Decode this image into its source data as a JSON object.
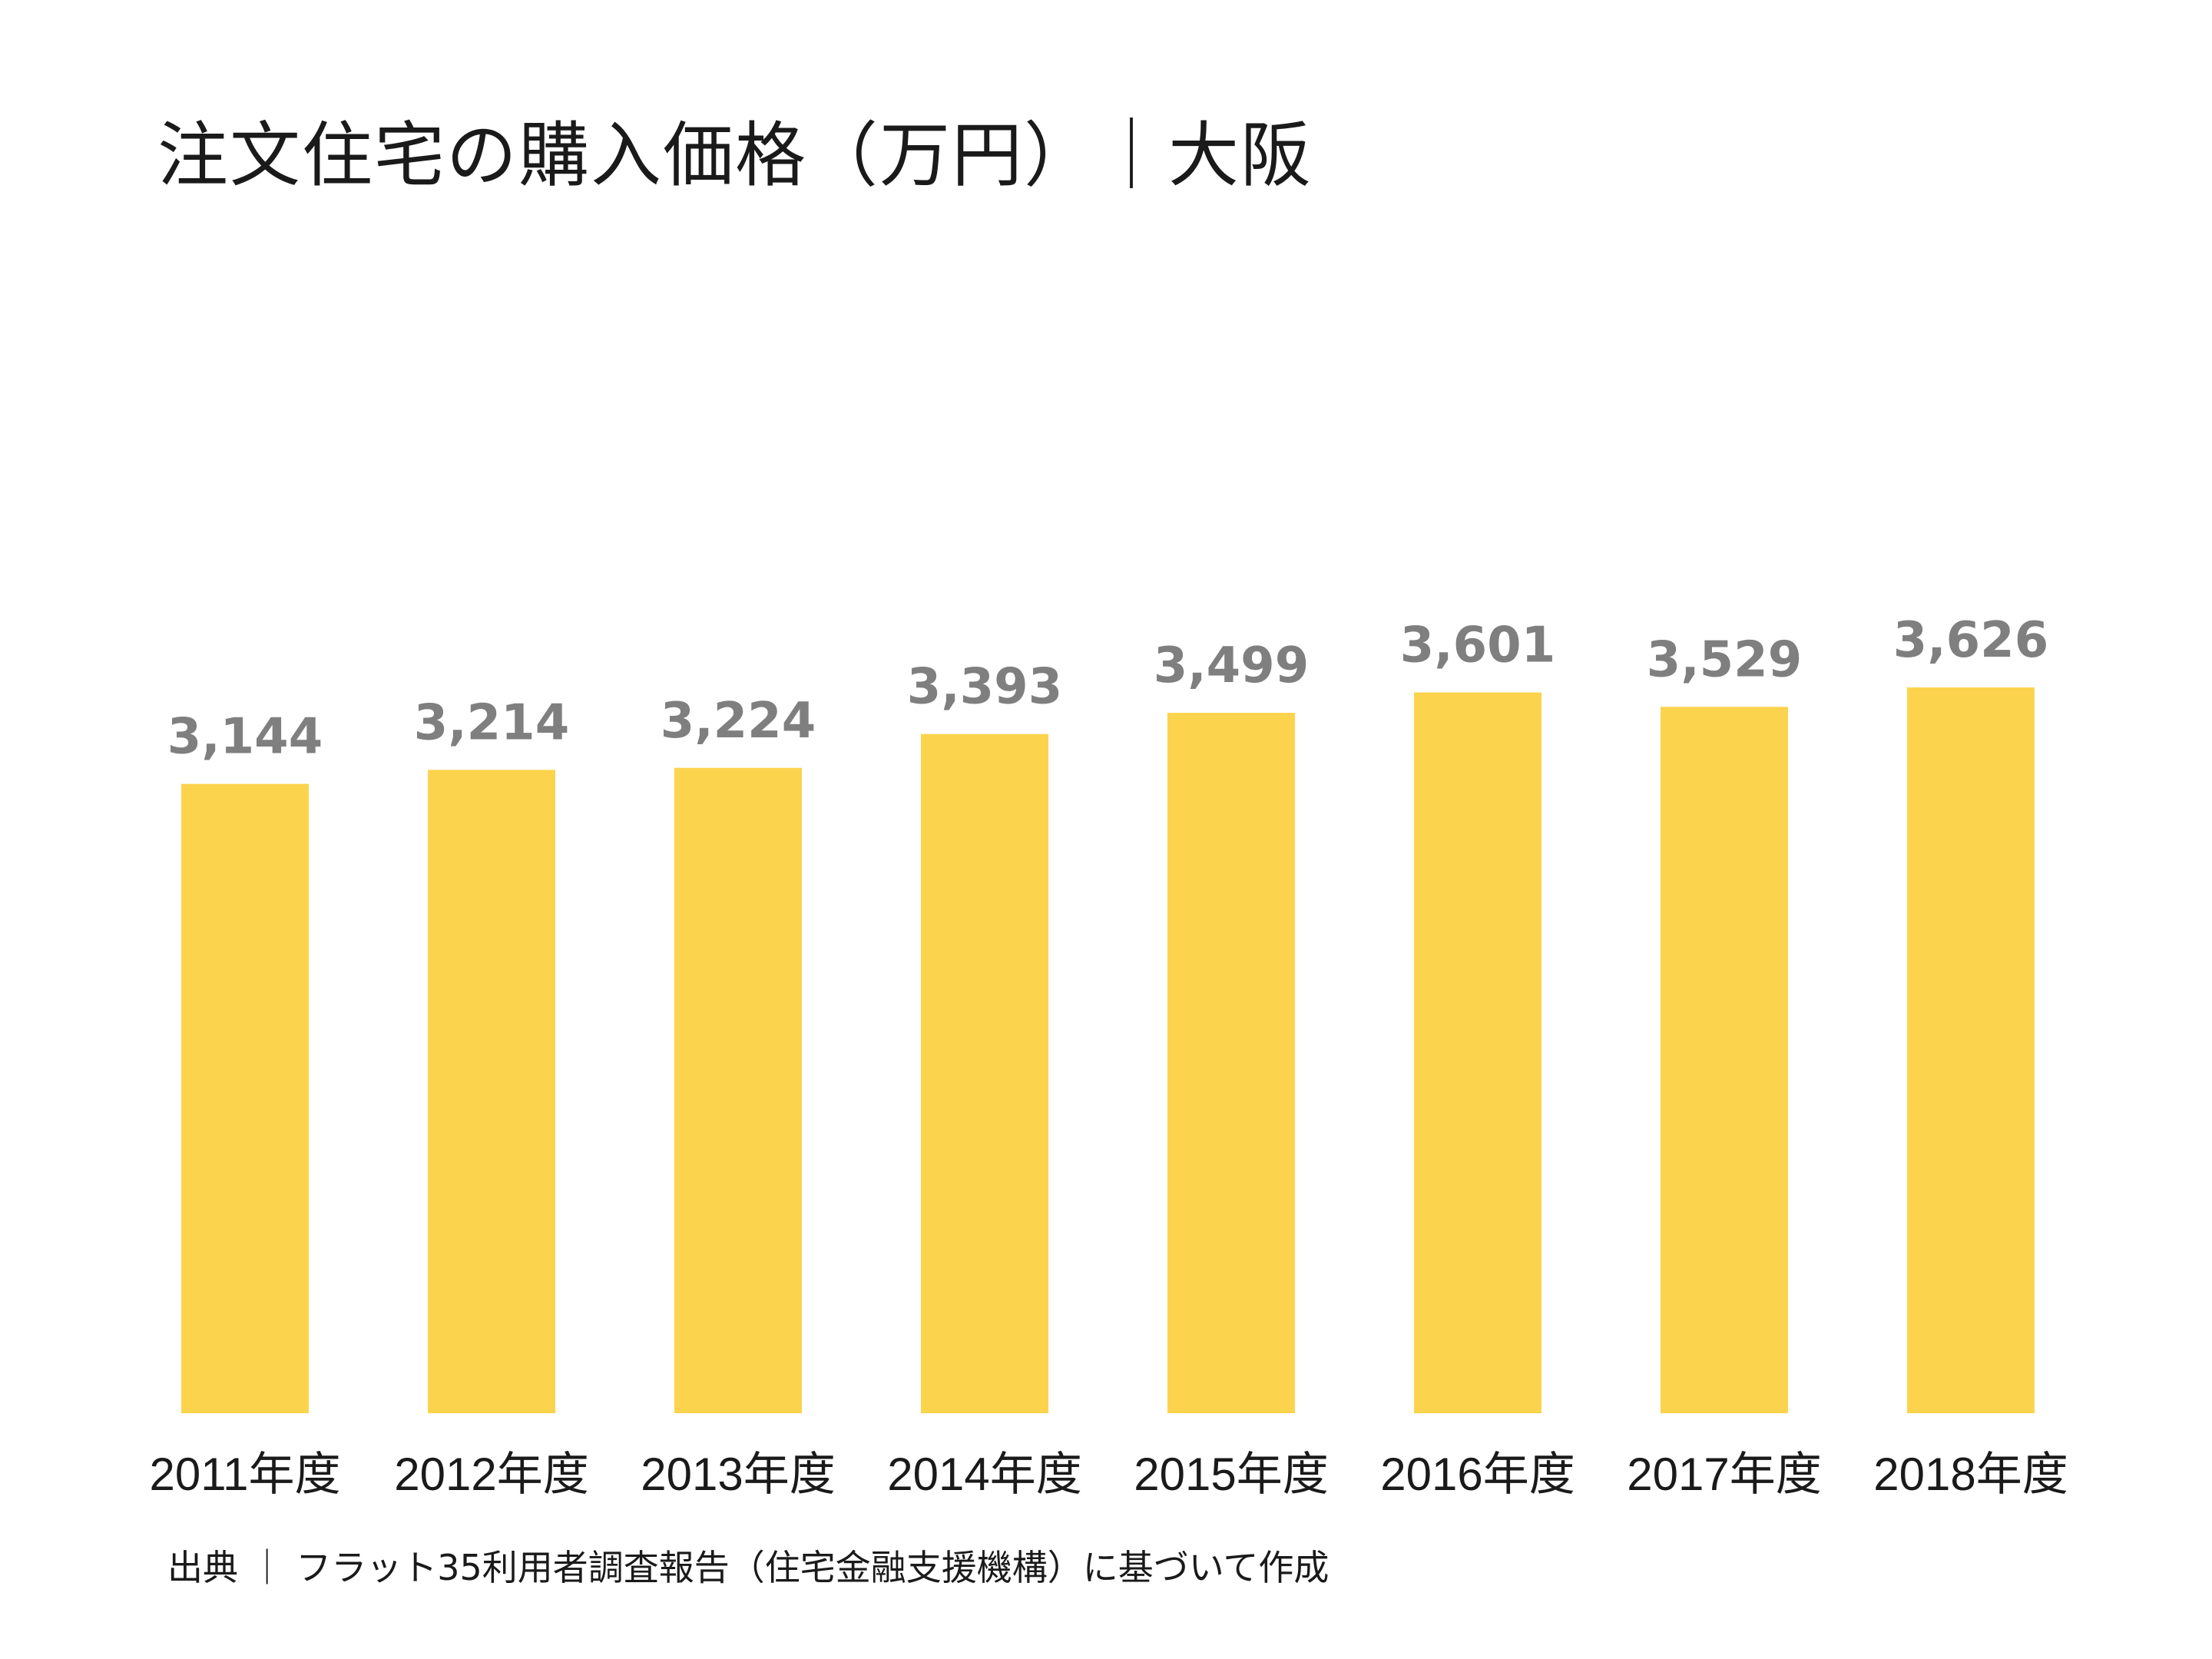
{
  "colors": {
    "bar": "#FCD34D",
    "value_label": "#7F7F7F",
    "text": "#1A1A1A",
    "background": "#FFFFFF"
  },
  "chart_data": {
    "type": "bar",
    "title": "注文住宅の購入価格（万円）｜大阪",
    "categories": [
      "2011年度",
      "2012年度",
      "2013年度",
      "2014年度",
      "2015年度",
      "2016年度",
      "2017年度",
      "2018年度"
    ],
    "values": [
      3144,
      3214,
      3224,
      3393,
      3499,
      3601,
      3529,
      3626
    ],
    "value_labels": [
      "3,144",
      "3,214",
      "3,224",
      "3,393",
      "3,499",
      "3,601",
      "3,529",
      "3,626"
    ],
    "ylim": [
      0,
      3626
    ],
    "grid": false,
    "legend": "none",
    "xlabel": "",
    "ylabel": ""
  },
  "footer": {
    "source": "出典 ｜ フラット35利用者調査報告（住宅金融支援機構）に基づいて作成"
  }
}
